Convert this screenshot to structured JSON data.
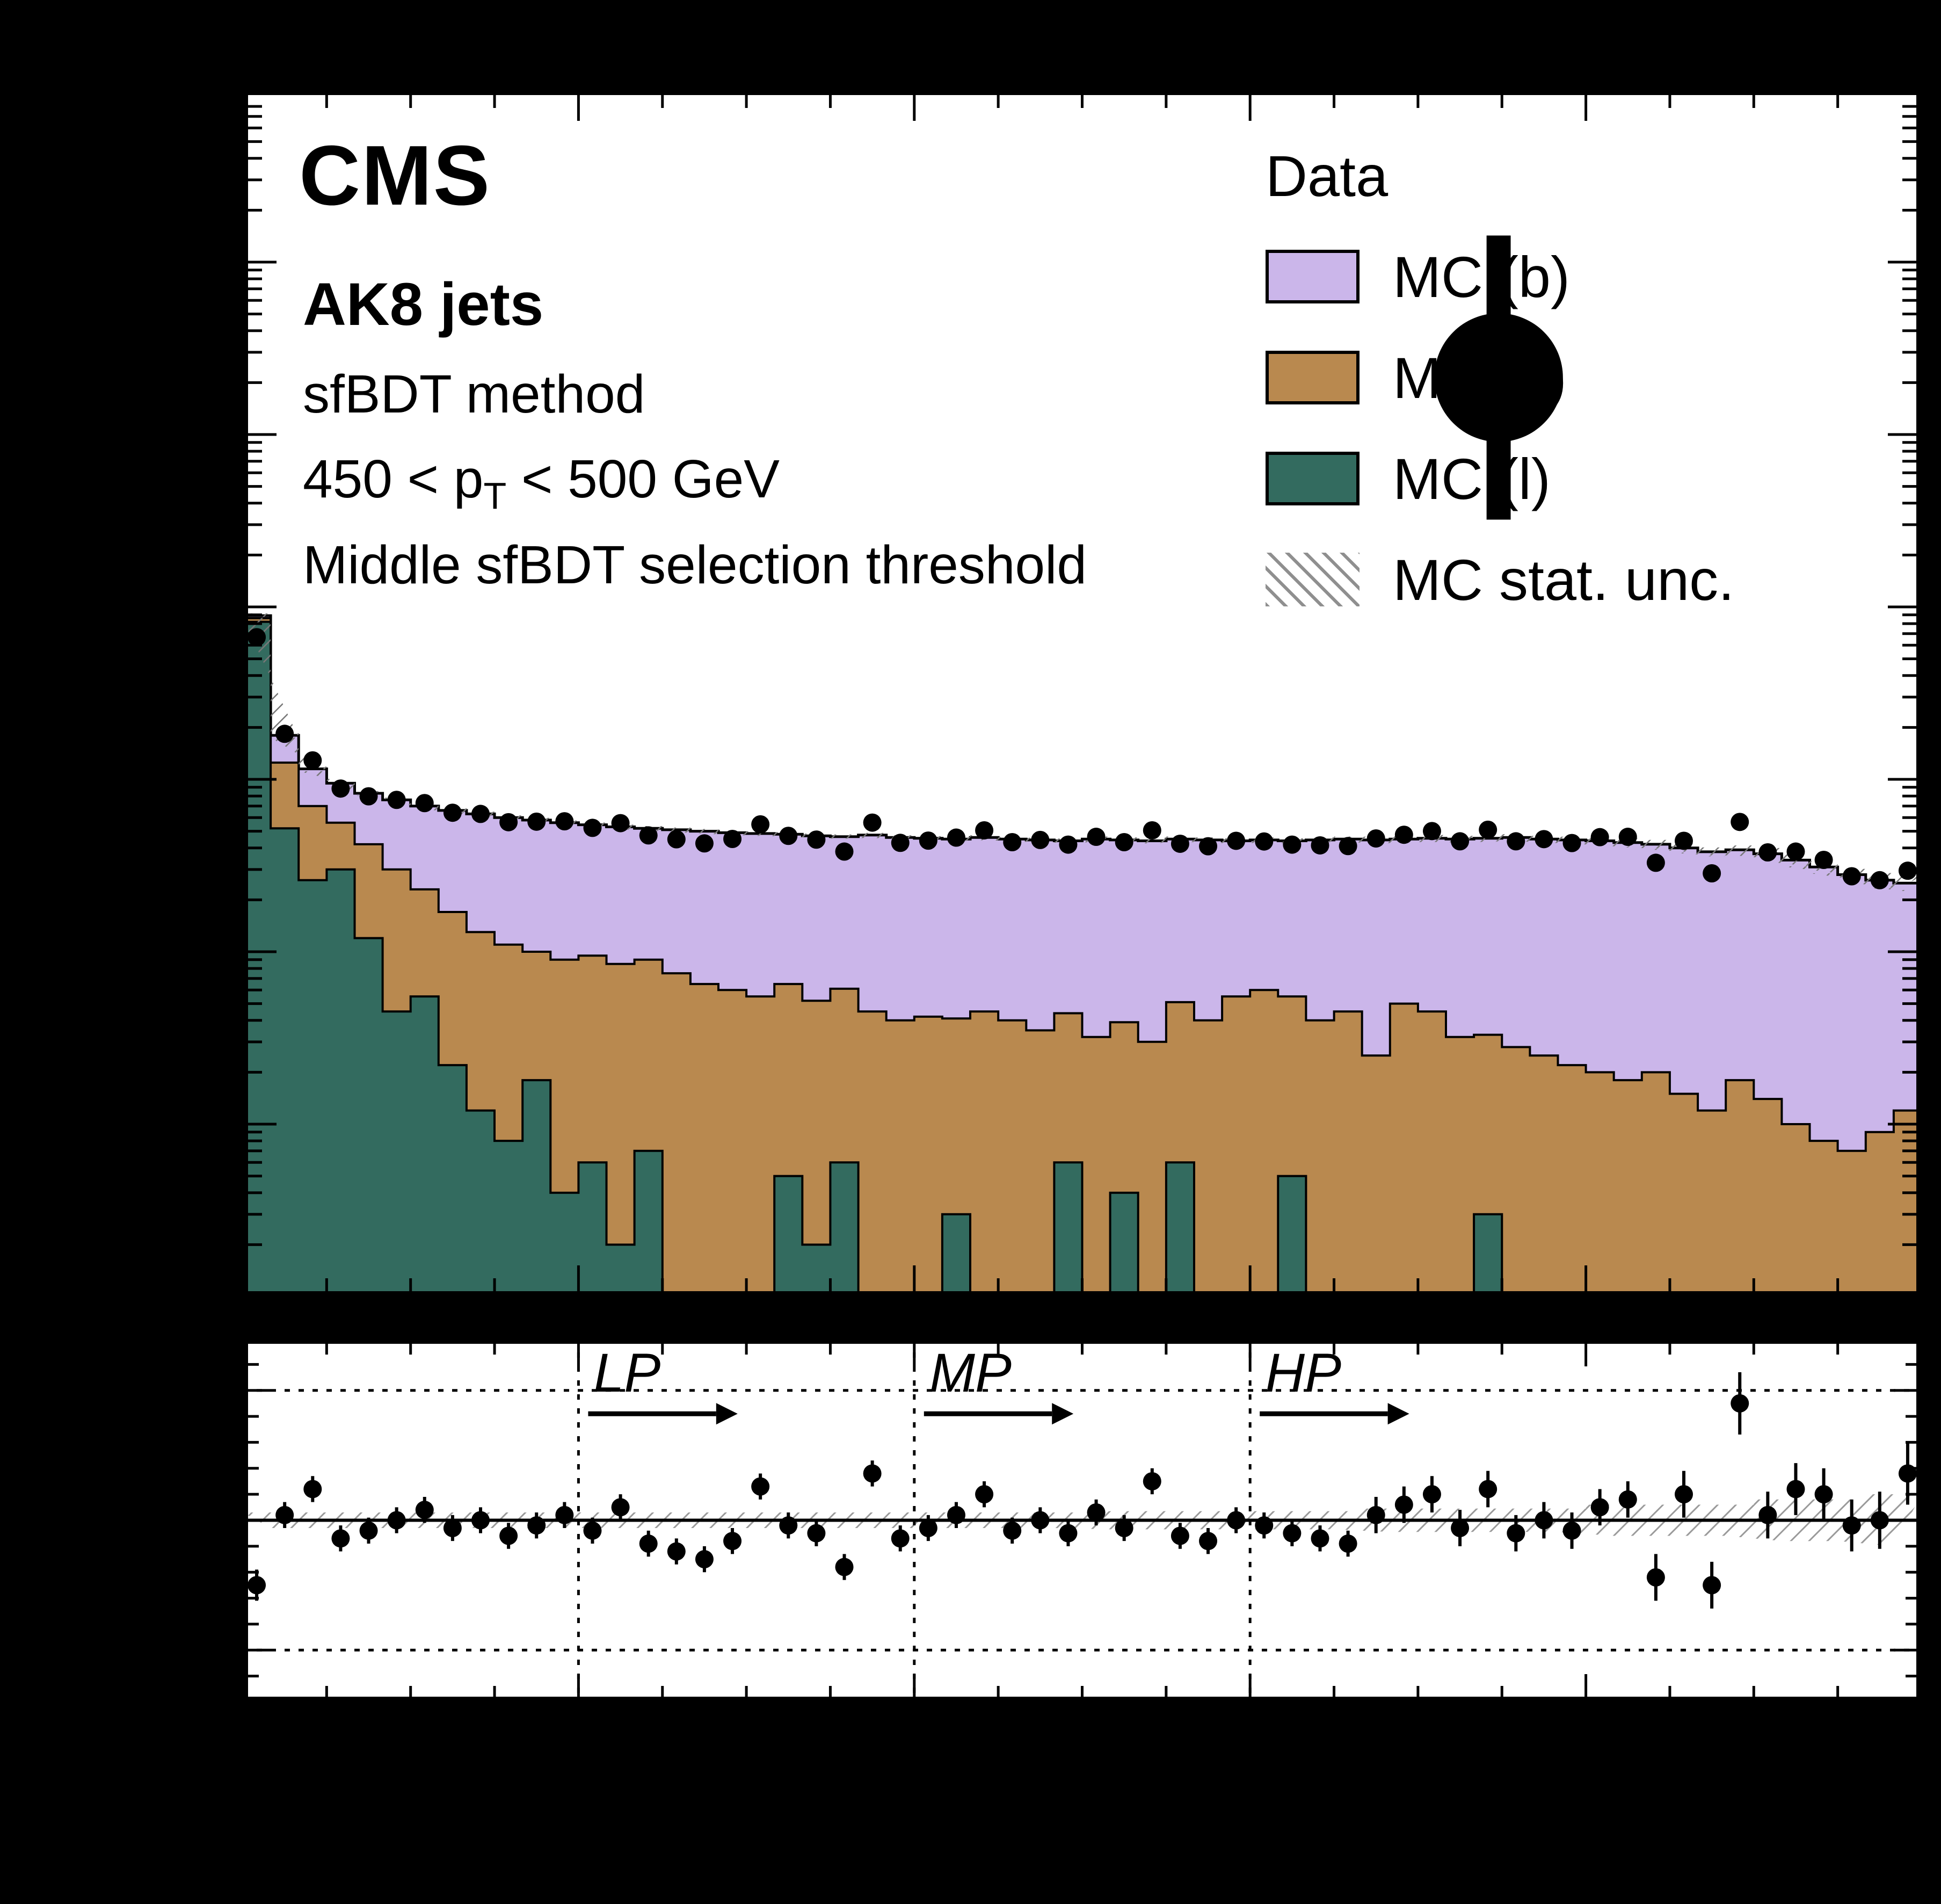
{
  "header": {
    "cms": "CMS",
    "jets": "AK8 jets",
    "method": "sfBDT method",
    "pt_pre": "450 < p",
    "pt_sub": "T",
    "pt_post": " < 500 GeV",
    "threshold": "Middle sfBDT selection threshold"
  },
  "legend": {
    "entries": [
      {
        "label": "Data",
        "type": "marker"
      },
      {
        "label": "MC (b)",
        "type": "box",
        "color": "#cbb6ea"
      },
      {
        "label": "MC (c)",
        "type": "box",
        "color": "#b9894f"
      },
      {
        "label": "MC (l)",
        "type": "box",
        "color": "#336b5f"
      },
      {
        "label": "MC stat. unc.",
        "type": "hatch"
      }
    ]
  },
  "regions": {
    "labels": [
      "LP",
      "MP",
      "HP"
    ],
    "thresholds": [
      0.2,
      0.4,
      0.6
    ]
  },
  "chart_data": {
    "type": "bar",
    "subtype": "stacked-step-histogram-with-ratio",
    "title": "CMS AK8 jets, sfBDT method, 450 < pT < 500 GeV, Middle sfBDT selection threshold",
    "xlabel": "",
    "ylabel": "",
    "x_range": [
      0,
      1
    ],
    "n_bins": 60,
    "y_scale": "log",
    "ylim": [
      1,
      10000000
    ],
    "grid": false,
    "legend_position": "top-right",
    "colors": {
      "b": "#cbb6ea",
      "c": "#b9894f",
      "l": "#336b5f",
      "data": "#000000",
      "hatch": "#777777"
    },
    "series": [
      {
        "name": "MC (b)",
        "color": "#cbb6ea",
        "values": [
          300,
          550,
          450,
          390,
          410,
          460,
          470,
          490,
          500,
          490,
          480,
          470,
          450,
          445,
          430,
          435,
          435,
          430,
          430,
          415,
          418,
          404,
          430,
          420,
          413,
          409,
          415,
          410,
          410,
          396,
          418,
          406,
          410,
          399,
          405,
          385,
          385,
          385,
          405,
          405,
          420,
          400,
          410,
          418,
          422,
          432,
          425,
          423,
          420,
          412,
          400,
          385,
          368,
          372,
          356,
          330,
          302,
          273,
          251,
          238
        ]
      },
      {
        "name": "MC (c)",
        "color": "#b9894f",
        "values": [
          400,
          730,
          440,
          260,
          300,
          255,
          175,
          148,
          118,
          102,
          82,
          86,
          89,
          83,
          83,
          74,
          65,
          60,
          55,
          60,
          50,
          55,
          45,
          40,
          42,
          38,
          45,
          40,
          35,
          38,
          32,
          35,
          30,
          45,
          40,
          55,
          60,
          50,
          40,
          45,
          25,
          50,
          45,
          32,
          30,
          28,
          25,
          22,
          20,
          18,
          20,
          15,
          12,
          18,
          14,
          10,
          8,
          7,
          9,
          12
        ]
      },
      {
        "name": "MC (l)",
        "color": "#336b5f",
        "values": [
          8200,
          520,
          260,
          300,
          120,
          45,
          55,
          22,
          12,
          8,
          18,
          4,
          6,
          2,
          7,
          1,
          0,
          0,
          0,
          5,
          2,
          6,
          0,
          0,
          0,
          3,
          0,
          0,
          0,
          6,
          0,
          4,
          0,
          6,
          0,
          0,
          0,
          5,
          0,
          0,
          0,
          0,
          0,
          0,
          3,
          0,
          0,
          0,
          0,
          0,
          0,
          0,
          0,
          0,
          0,
          0,
          0,
          0,
          0,
          0
        ]
      }
    ],
    "totals": [
      8900,
      1800,
      1150,
      950,
      830,
      760,
      700,
      660,
      630,
      600,
      580,
      560,
      545,
      530,
      520,
      510,
      500,
      490,
      485,
      480,
      470,
      465,
      475,
      460,
      455,
      450,
      460,
      450,
      445,
      440,
      450,
      445,
      440,
      450,
      445,
      440,
      445,
      440,
      445,
      450,
      445,
      450,
      455,
      450,
      455,
      460,
      450,
      445,
      440,
      430,
      420,
      400,
      380,
      390,
      370,
      340,
      310,
      280,
      260,
      250
    ],
    "data_points": [
      6675,
      1836,
      1288,
      884,
      797,
      760,
      728,
      640,
      630,
      564,
      568,
      571,
      523,
      557,
      473,
      449,
      425,
      451,
      548,
      470,
      447,
      381,
      561,
      428,
      441,
      459,
      506,
      432,
      445,
      418,
      464,
      432,
      506,
      423,
      409,
      440,
      436,
      418,
      414,
      410,
      454,
      477,
      501,
      437,
      510,
      437,
      450,
      427,
      462,
      464,
      328,
      440,
      285,
      566,
      377,
      381,
      341,
      274,
      260,
      295
    ],
    "ratio": [
      0.75,
      1.02,
      1.12,
      0.93,
      0.96,
      1.0,
      1.04,
      0.97,
      1.0,
      0.94,
      0.98,
      1.02,
      0.96,
      1.05,
      0.91,
      0.88,
      0.85,
      0.92,
      1.13,
      0.98,
      0.95,
      0.82,
      1.18,
      0.93,
      0.97,
      1.02,
      1.1,
      0.96,
      1.0,
      0.95,
      1.03,
      0.97,
      1.15,
      0.94,
      0.92,
      1.0,
      0.98,
      0.95,
      0.93,
      0.91,
      1.02,
      1.06,
      1.1,
      0.97,
      1.12,
      0.95,
      1.0,
      0.96,
      1.05,
      1.08,
      0.78,
      1.1,
      0.75,
      1.45,
      1.02,
      1.12,
      1.1,
      0.98,
      1.0,
      1.18
    ],
    "ratio_err": [
      0.06,
      0.05,
      0.05,
      0.05,
      0.05,
      0.05,
      0.05,
      0.05,
      0.05,
      0.05,
      0.05,
      0.05,
      0.05,
      0.05,
      0.05,
      0.05,
      0.05,
      0.05,
      0.05,
      0.05,
      0.05,
      0.05,
      0.05,
      0.05,
      0.05,
      0.05,
      0.05,
      0.05,
      0.05,
      0.05,
      0.05,
      0.05,
      0.05,
      0.05,
      0.05,
      0.05,
      0.05,
      0.05,
      0.05,
      0.05,
      0.07,
      0.07,
      0.07,
      0.07,
      0.07,
      0.07,
      0.07,
      0.07,
      0.07,
      0.07,
      0.09,
      0.09,
      0.09,
      0.12,
      0.09,
      0.1,
      0.1,
      0.1,
      0.11,
      0.12
    ],
    "mc_stat_frac": [
      0.03,
      0.03,
      0.03,
      0.03,
      0.03,
      0.03,
      0.03,
      0.03,
      0.03,
      0.03,
      0.03,
      0.03,
      0.03,
      0.03,
      0.03,
      0.03,
      0.03,
      0.03,
      0.03,
      0.03,
      0.03,
      0.03,
      0.03,
      0.03,
      0.03,
      0.03,
      0.03,
      0.03,
      0.03,
      0.03,
      0.035,
      0.035,
      0.035,
      0.035,
      0.035,
      0.035,
      0.035,
      0.035,
      0.035,
      0.035,
      0.045,
      0.045,
      0.045,
      0.045,
      0.045,
      0.045,
      0.045,
      0.045,
      0.06,
      0.06,
      0.06,
      0.06,
      0.06,
      0.06,
      0.08,
      0.08,
      0.08,
      0.08,
      0.1,
      0.1
    ],
    "ratio_panel": {
      "ylim": [
        0.3,
        1.7
      ],
      "solid_line": 1.0,
      "dotted_lines": [
        0.5,
        1.5
      ],
      "vertical_dotted_lines": [
        0.2,
        0.4,
        0.6
      ]
    }
  }
}
